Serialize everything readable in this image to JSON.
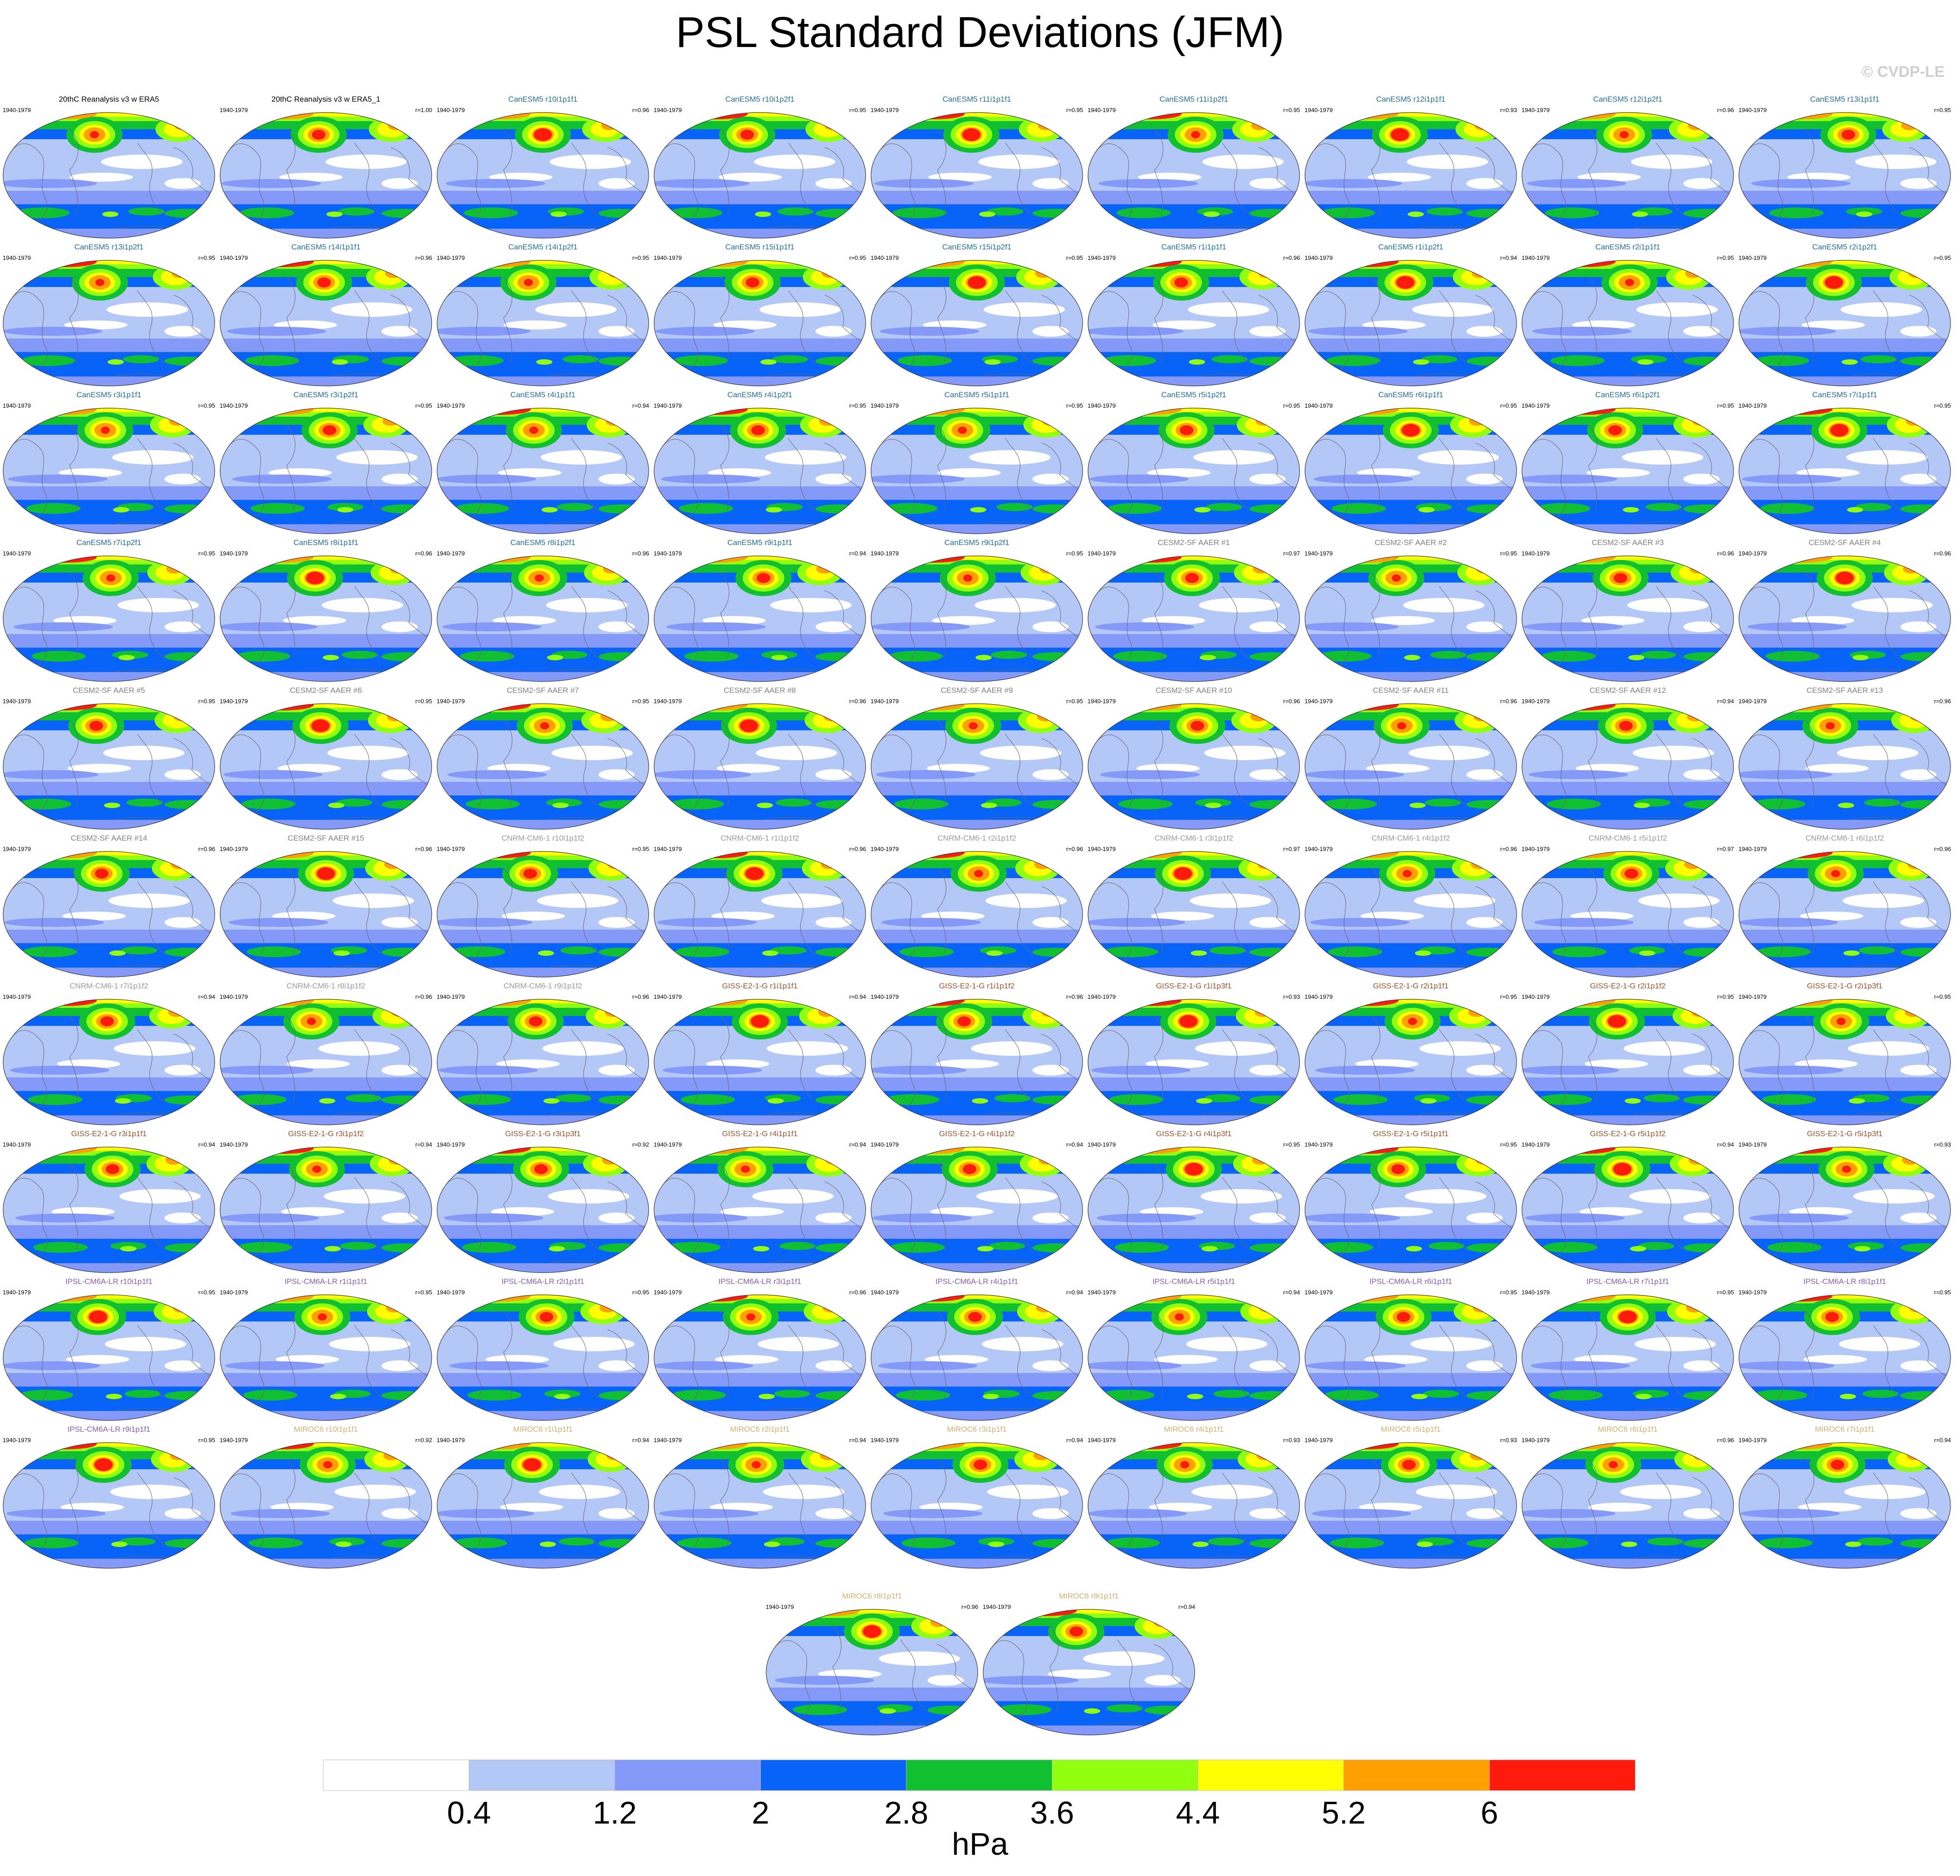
{
  "title": "PSL Standard Deviations (JFM)",
  "watermark": "© CVDP-LE",
  "chart_data": {
    "type": "heatmap",
    "variable": "PSL",
    "season": "JFM",
    "units": "hPa",
    "colorbar": {
      "levels": [
        "0.4",
        "1.2",
        "2",
        "2.8",
        "3.6",
        "4.4",
        "5.2",
        "6"
      ],
      "colors": [
        "#ffffff",
        "#b4c8f8",
        "#8499f8",
        "#0864f8",
        "#10c030",
        "#90ff10",
        "#ffff00",
        "#ffa000",
        "#ff1b0c"
      ],
      "label": "hPa"
    },
    "panels": [
      {
        "title": "20thC Reanalysis v3 w ERA5",
        "period": "1940-1979",
        "r": "",
        "color": "#000000"
      },
      {
        "title": "20thC Reanalysis v3 w ERA5_1",
        "period": "1940-1979",
        "r": "r=1.00",
        "color": "#000000"
      },
      {
        "title": "CanESM5 r10i1p1f1",
        "period": "1940-1979",
        "r": "r=0.96",
        "color": "#1f6fa8"
      },
      {
        "title": "CanESM5 r10i1p2f1",
        "period": "1940-1979",
        "r": "r=0.95",
        "color": "#1f6fa8"
      },
      {
        "title": "CanESM5 r11i1p1f1",
        "period": "1940-1979",
        "r": "r=0.95",
        "color": "#1f6fa8"
      },
      {
        "title": "CanESM5 r11i1p2f1",
        "period": "1940-1979",
        "r": "r=0.95",
        "color": "#1f6fa8"
      },
      {
        "title": "CanESM5 r12i1p1f1",
        "period": "1940-1979",
        "r": "r=0.93",
        "color": "#1f6fa8"
      },
      {
        "title": "CanESM5 r12i1p2f1",
        "period": "1940-1979",
        "r": "r=0.96",
        "color": "#1f6fa8"
      },
      {
        "title": "CanESM5 r13i1p1f1",
        "period": "1940-1979",
        "r": "r=0.95",
        "color": "#1f6fa8"
      },
      {
        "title": "CanESM5 r13i1p2f1",
        "period": "1940-1979",
        "r": "r=0.95",
        "color": "#1f6fa8"
      },
      {
        "title": "CanESM5 r14i1p1f1",
        "period": "1940-1979",
        "r": "r=0.96",
        "color": "#1f6fa8"
      },
      {
        "title": "CanESM5 r14i1p2f1",
        "period": "1940-1979",
        "r": "r=0.95",
        "color": "#1f6fa8"
      },
      {
        "title": "CanESM5 r15i1p1f1",
        "period": "1940-1979",
        "r": "r=0.95",
        "color": "#1f6fa8"
      },
      {
        "title": "CanESM5 r15i1p2f1",
        "period": "1940-1979",
        "r": "r=0.95",
        "color": "#1f6fa8"
      },
      {
        "title": "CanESM5 r1i1p1f1",
        "period": "1940-1979",
        "r": "r=0.96",
        "color": "#1f6fa8"
      },
      {
        "title": "CanESM5 r1i1p2f1",
        "period": "1940-1979",
        "r": "r=0.94",
        "color": "#1f6fa8"
      },
      {
        "title": "CanESM5 r2i1p1f1",
        "period": "1940-1979",
        "r": "r=0.95",
        "color": "#1f6fa8"
      },
      {
        "title": "CanESM5 r2i1p2f1",
        "period": "1940-1979",
        "r": "r=0.95",
        "color": "#1f6fa8"
      },
      {
        "title": "CanESM5 r3i1p1f1",
        "period": "1940-1979",
        "r": "r=0.95",
        "color": "#1f6fa8"
      },
      {
        "title": "CanESM5 r3i1p2f1",
        "period": "1940-1979",
        "r": "r=0.95",
        "color": "#1f6fa8"
      },
      {
        "title": "CanESM5 r4i1p1f1",
        "period": "1940-1979",
        "r": "r=0.94",
        "color": "#1f6fa8"
      },
      {
        "title": "CanESM5 r4i1p2f1",
        "period": "1940-1979",
        "r": "r=0.95",
        "color": "#1f6fa8"
      },
      {
        "title": "CanESM5 r5i1p1f1",
        "period": "1940-1979",
        "r": "r=0.95",
        "color": "#1f6fa8"
      },
      {
        "title": "CanESM5 r5i1p2f1",
        "period": "1940-1979",
        "r": "r=0.95",
        "color": "#1f6fa8"
      },
      {
        "title": "CanESM5 r6i1p1f1",
        "period": "1940-1979",
        "r": "r=0.95",
        "color": "#1f6fa8"
      },
      {
        "title": "CanESM5 r6i1p2f1",
        "period": "1940-1979",
        "r": "r=0.95",
        "color": "#1f6fa8"
      },
      {
        "title": "CanESM5 r7i1p1f1",
        "period": "1940-1979",
        "r": "r=0.95",
        "color": "#1f6fa8"
      },
      {
        "title": "CanESM5 r7i1p2f1",
        "period": "1940-1979",
        "r": "r=0.95",
        "color": "#1f6fa8"
      },
      {
        "title": "CanESM5 r8i1p1f1",
        "period": "1940-1979",
        "r": "r=0.96",
        "color": "#1f6fa8"
      },
      {
        "title": "CanESM5 r8i1p2f1",
        "period": "1940-1979",
        "r": "r=0.96",
        "color": "#1f6fa8"
      },
      {
        "title": "CanESM5 r9i1p1f1",
        "period": "1940-1979",
        "r": "r=0.94",
        "color": "#1f6fa8"
      },
      {
        "title": "CanESM5 r9i1p2f1",
        "period": "1940-1979",
        "r": "r=0.95",
        "color": "#1f6fa8"
      },
      {
        "title": "CESM2-SF AAER #1",
        "period": "1940-1979",
        "r": "r=0.97",
        "color": "#808080"
      },
      {
        "title": "CESM2-SF AAER #2",
        "period": "1940-1979",
        "r": "r=0.95",
        "color": "#808080"
      },
      {
        "title": "CESM2-SF AAER #3",
        "period": "1940-1979",
        "r": "r=0.96",
        "color": "#808080"
      },
      {
        "title": "CESM2-SF AAER #4",
        "period": "1940-1979",
        "r": "r=0.96",
        "color": "#808080"
      },
      {
        "title": "CESM2-SF AAER #5",
        "period": "1940-1979",
        "r": "r=0.95",
        "color": "#808080"
      },
      {
        "title": "CESM2-SF AAER #6",
        "period": "1940-1979",
        "r": "r=0.95",
        "color": "#808080"
      },
      {
        "title": "CESM2-SF AAER #7",
        "period": "1940-1979",
        "r": "r=0.95",
        "color": "#808080"
      },
      {
        "title": "CESM2-SF AAER #8",
        "period": "1940-1979",
        "r": "r=0.96",
        "color": "#808080"
      },
      {
        "title": "CESM2-SF AAER #9",
        "period": "1940-1979",
        "r": "r=0.95",
        "color": "#808080"
      },
      {
        "title": "CESM2-SF AAER #10",
        "period": "1940-1979",
        "r": "r=0.96",
        "color": "#808080"
      },
      {
        "title": "CESM2-SF AAER #11",
        "period": "1940-1979",
        "r": "r=0.96",
        "color": "#808080"
      },
      {
        "title": "CESM2-SF AAER #12",
        "period": "1940-1979",
        "r": "r=0.94",
        "color": "#808080"
      },
      {
        "title": "CESM2-SF AAER #13",
        "period": "1940-1979",
        "r": "r=0.96",
        "color": "#808080"
      },
      {
        "title": "CESM2-SF AAER #14",
        "period": "1940-1979",
        "r": "r=0.96",
        "color": "#808080"
      },
      {
        "title": "CESM2-SF AAER #15",
        "period": "1940-1979",
        "r": "r=0.96",
        "color": "#808080"
      },
      {
        "title": "CNRM-CM6-1 r10i1p1f2",
        "period": "1940-1979",
        "r": "r=0.95",
        "color": "#9a9a9a"
      },
      {
        "title": "CNRM-CM6-1 r1i1p1f2",
        "period": "1940-1979",
        "r": "r=0.96",
        "color": "#9a9a9a"
      },
      {
        "title": "CNRM-CM6-1 r2i1p1f2",
        "period": "1940-1979",
        "r": "r=0.96",
        "color": "#9a9a9a"
      },
      {
        "title": "CNRM-CM6-1 r3i1p1f2",
        "period": "1940-1979",
        "r": "r=0.97",
        "color": "#9a9a9a"
      },
      {
        "title": "CNRM-CM6-1 r4i1p1f2",
        "period": "1940-1979",
        "r": "r=0.96",
        "color": "#9a9a9a"
      },
      {
        "title": "CNRM-CM6-1 r5i1p1f2",
        "period": "1940-1979",
        "r": "r=0.97",
        "color": "#9a9a9a"
      },
      {
        "title": "CNRM-CM6-1 r6i1p1f2",
        "period": "1940-1979",
        "r": "r=0.96",
        "color": "#9a9a9a"
      },
      {
        "title": "CNRM-CM6-1 r7i1p1f2",
        "period": "1940-1979",
        "r": "r=0.94",
        "color": "#9a9a9a"
      },
      {
        "title": "CNRM-CM6-1 r8i1p1f2",
        "period": "1940-1979",
        "r": "r=0.96",
        "color": "#9a9a9a"
      },
      {
        "title": "CNRM-CM6-1 r9i1p1f2",
        "period": "1940-1979",
        "r": "r=0.96",
        "color": "#9a9a9a"
      },
      {
        "title": "GISS-E2-1-G r1i1p1f1",
        "period": "1940-1979",
        "r": "r=0.94",
        "color": "#a0522d"
      },
      {
        "title": "GISS-E2-1-G r1i1p1f2",
        "period": "1940-1979",
        "r": "r=0.96",
        "color": "#a0522d"
      },
      {
        "title": "GISS-E2-1-G r1i1p3f1",
        "period": "1940-1979",
        "r": "r=0.93",
        "color": "#a0522d"
      },
      {
        "title": "GISS-E2-1-G r2i1p1f1",
        "period": "1940-1979",
        "r": "r=0.95",
        "color": "#a0522d"
      },
      {
        "title": "GISS-E2-1-G r2i1p1f2",
        "period": "1940-1979",
        "r": "r=0.95",
        "color": "#a0522d"
      },
      {
        "title": "GISS-E2-1-G r2i1p3f1",
        "period": "1940-1979",
        "r": "r=0.95",
        "color": "#a0522d"
      },
      {
        "title": "GISS-E2-1-G r3i1p1f1",
        "period": "1940-1979",
        "r": "r=0.94",
        "color": "#a0522d"
      },
      {
        "title": "GISS-E2-1-G r3i1p1f2",
        "period": "1940-1979",
        "r": "r=0.94",
        "color": "#a0522d"
      },
      {
        "title": "GISS-E2-1-G r3i1p3f1",
        "period": "1940-1979",
        "r": "r=0.92",
        "color": "#a0522d"
      },
      {
        "title": "GISS-E2-1-G r4i1p1f1",
        "period": "1940-1979",
        "r": "r=0.94",
        "color": "#a0522d"
      },
      {
        "title": "GISS-E2-1-G r4i1p1f2",
        "period": "1940-1979",
        "r": "r=0.94",
        "color": "#a0522d"
      },
      {
        "title": "GISS-E2-1-G r4i1p3f1",
        "period": "1940-1979",
        "r": "r=0.95",
        "color": "#a0522d"
      },
      {
        "title": "GISS-E2-1-G r5i1p1f1",
        "period": "1940-1979",
        "r": "r=0.95",
        "color": "#a0522d"
      },
      {
        "title": "GISS-E2-1-G r5i1p1f2",
        "period": "1940-1979",
        "r": "r=0.94",
        "color": "#a0522d"
      },
      {
        "title": "GISS-E2-1-G r5i1p3f1",
        "period": "1940-1979",
        "r": "r=0.93",
        "color": "#a0522d"
      },
      {
        "title": "IPSL-CM6A-LR r10i1p1f1",
        "period": "1940-1979",
        "r": "r=0.95",
        "color": "#8a5cc0"
      },
      {
        "title": "IPSL-CM6A-LR r1i1p1f1",
        "period": "1940-1979",
        "r": "r=0.95",
        "color": "#8a5cc0"
      },
      {
        "title": "IPSL-CM6A-LR r2i1p1f1",
        "period": "1940-1979",
        "r": "r=0.95",
        "color": "#8a5cc0"
      },
      {
        "title": "IPSL-CM6A-LR r3i1p1f1",
        "period": "1940-1979",
        "r": "r=0.96",
        "color": "#8a5cc0"
      },
      {
        "title": "IPSL-CM6A-LR r4i1p1f1",
        "period": "1940-1979",
        "r": "r=0.94",
        "color": "#8a5cc0"
      },
      {
        "title": "IPSL-CM6A-LR r5i1p1f1",
        "period": "1940-1979",
        "r": "r=0.94",
        "color": "#8a5cc0"
      },
      {
        "title": "IPSL-CM6A-LR r6i1p1f1",
        "period": "1940-1979",
        "r": "r=0.95",
        "color": "#8a5cc0"
      },
      {
        "title": "IPSL-CM6A-LR r7i1p1f1",
        "period": "1940-1979",
        "r": "r=0.95",
        "color": "#8a5cc0"
      },
      {
        "title": "IPSL-CM6A-LR r8i1p1f1",
        "period": "1940-1979",
        "r": "r=0.95",
        "color": "#8a5cc0"
      },
      {
        "title": "IPSL-CM6A-LR r9i1p1f1",
        "period": "1940-1979",
        "r": "r=0.95",
        "color": "#8a5cc0"
      },
      {
        "title": "MIROC6 r10i1p1f1",
        "period": "1940-1979",
        "r": "r=0.92",
        "color": "#d4b06a"
      },
      {
        "title": "MIROC6 r1i1p1f1",
        "period": "1940-1979",
        "r": "r=0.94",
        "color": "#d4b06a"
      },
      {
        "title": "MIROC6 r2i1p1f1",
        "period": "1940-1979",
        "r": "r=0.94",
        "color": "#d4b06a"
      },
      {
        "title": "MIROC6 r3i1p1f1",
        "period": "1940-1979",
        "r": "r=0.94",
        "color": "#d4b06a"
      },
      {
        "title": "MIROC6 r4i1p1f1",
        "period": "1940-1979",
        "r": "r=0.93",
        "color": "#d4b06a"
      },
      {
        "title": "MIROC6 r5i1p1f1",
        "period": "1940-1979",
        "r": "r=0.93",
        "color": "#d4b06a"
      },
      {
        "title": "MIROC6 r6i1p1f1",
        "period": "1940-1979",
        "r": "r=0.96",
        "color": "#d4b06a"
      },
      {
        "title": "MIROC6 r7i1p1f1",
        "period": "1940-1979",
        "r": "r=0.94",
        "color": "#d4b06a"
      },
      {
        "title": "MIROC6 r8i1p1f1",
        "period": "1940-1979",
        "r": "r=0.96",
        "color": "#d4b06a"
      },
      {
        "title": "MIROC6 r9i1p1f1",
        "period": "1940-1979",
        "r": "r=0.94",
        "color": "#d4b06a"
      }
    ]
  }
}
